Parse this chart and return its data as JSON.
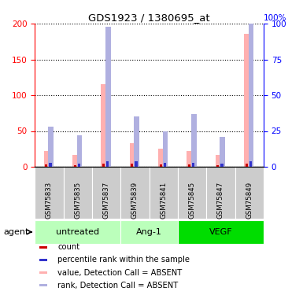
{
  "title": "GDS1923 / 1380695_at",
  "samples": [
    "GSM75833",
    "GSM75835",
    "GSM75837",
    "GSM75839",
    "GSM75841",
    "GSM75845",
    "GSM75847",
    "GSM75849"
  ],
  "value_absent": [
    22,
    17,
    115,
    33,
    25,
    22,
    17,
    186
  ],
  "rank_absent": [
    28,
    22,
    98,
    35,
    25,
    37,
    21,
    112
  ],
  "count_val": [
    3,
    2,
    4,
    4,
    3,
    3,
    2,
    4
  ],
  "count_rank": [
    3,
    2,
    4,
    4,
    3,
    3,
    2,
    4
  ],
  "ylim_left": [
    0,
    200
  ],
  "ylim_right": [
    0,
    100
  ],
  "yticks_left": [
    0,
    50,
    100,
    150,
    200
  ],
  "yticks_right": [
    0,
    25,
    50,
    75,
    100
  ],
  "color_count": "#cc0000",
  "color_rank_dot": "#3333cc",
  "color_value_absent": "#ffb0b0",
  "color_rank_absent": "#b0b0e0",
  "group_bg_color": "#cccccc",
  "group_info": [
    {
      "label": "untreated",
      "start": 0,
      "end": 2,
      "color": "#bbffbb"
    },
    {
      "label": "Ang-1",
      "start": 3,
      "end": 4,
      "color": "#bbffbb"
    },
    {
      "label": "VEGF",
      "start": 5,
      "end": 7,
      "color": "#00dd00"
    }
  ]
}
